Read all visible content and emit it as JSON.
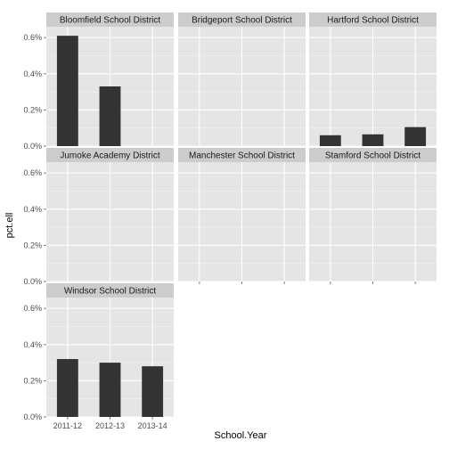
{
  "colors": {
    "panel_background": "#E5E5E5",
    "grid_major": "#FFFFFF",
    "grid_minor": "#F2F2F2",
    "strip_background": "#CCCCCC",
    "bar_fill": "#333333"
  },
  "chart_data": {
    "type": "bar",
    "layout": "faceted",
    "facet_columns": 3,
    "xlabel": "School.Year",
    "ylabel": "pct.ell",
    "categories": [
      "2011-12",
      "2012-13",
      "2013-14"
    ],
    "ylim": [
      0,
      0.66
    ],
    "y_ticks": [
      0,
      0.2,
      0.4,
      0.6
    ],
    "y_tick_labels": [
      "0.0%",
      "0.2%",
      "0.4%",
      "0.6%"
    ],
    "value_unit": "percent",
    "grid": true,
    "facets": [
      {
        "name": "Bloomfield School District",
        "values": [
          0.61,
          0.33,
          null
        ]
      },
      {
        "name": "Bridgeport School District",
        "values": [
          null,
          null,
          null
        ]
      },
      {
        "name": "Hartford School District",
        "values": [
          0.06,
          0.065,
          0.105
        ]
      },
      {
        "name": "Jumoke Academy District",
        "values": [
          null,
          null,
          null
        ]
      },
      {
        "name": "Manchester School District",
        "values": [
          null,
          null,
          null
        ]
      },
      {
        "name": "Stamford School District",
        "values": [
          null,
          null,
          null
        ]
      },
      {
        "name": "Windsor School District",
        "values": [
          0.32,
          0.3,
          0.28
        ]
      }
    ]
  }
}
